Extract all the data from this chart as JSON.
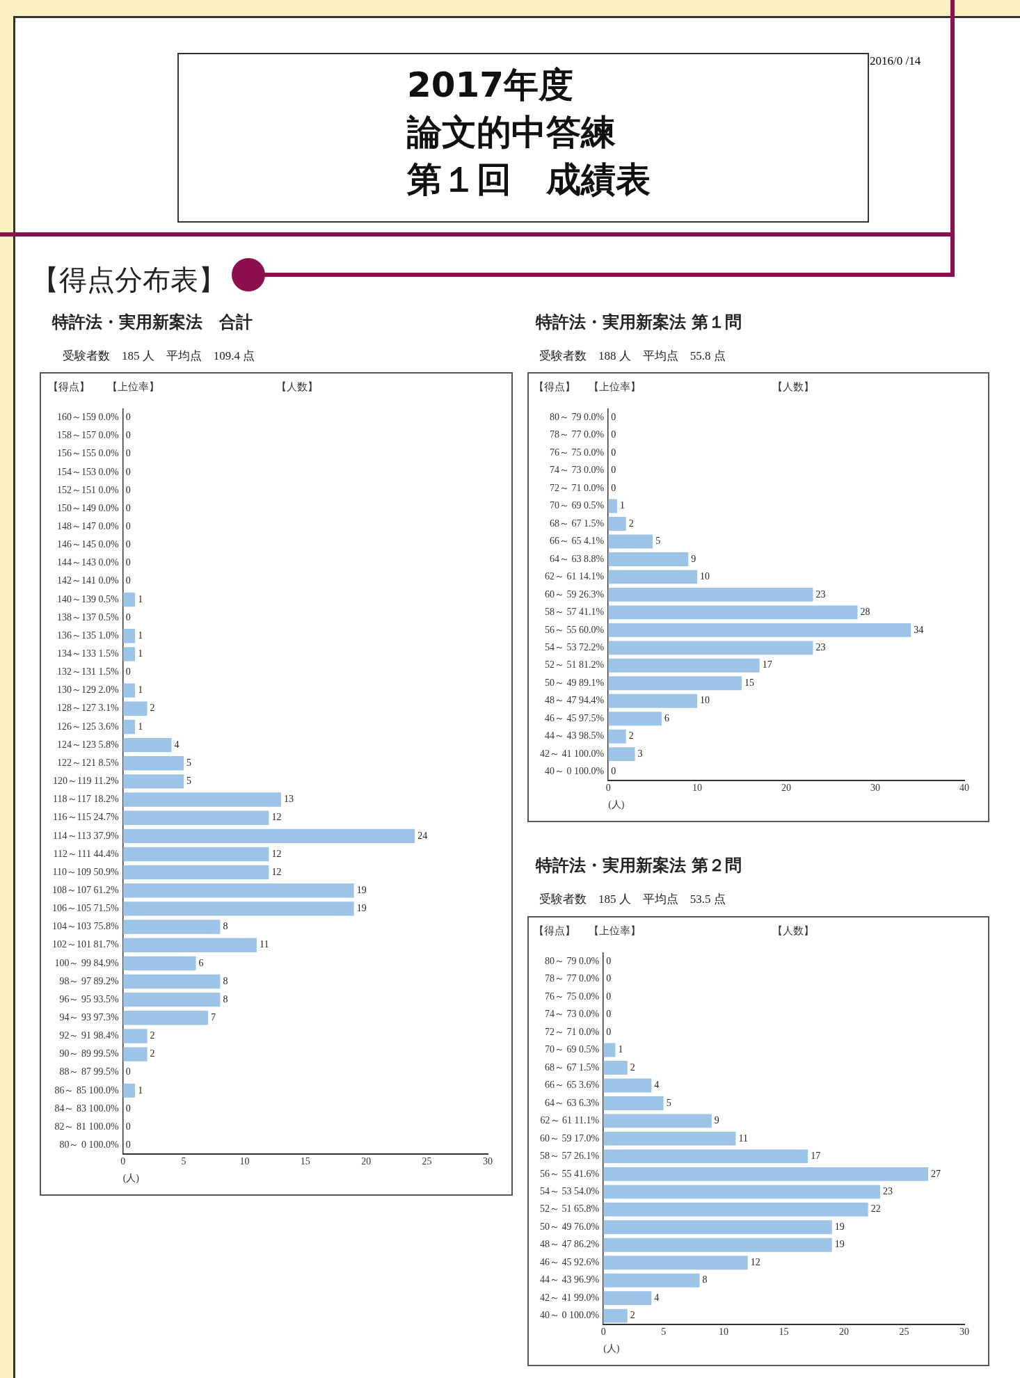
{
  "chart_data": [
    {
      "type": "other",
      "title": "2017年度",
      "subtitle": "論文的中答練",
      "annotations": [
        "第１回　成績表",
        "2016/0 /14",
        "【得点分布表】"
      ]
    },
    {
      "type": "bar",
      "orientation": "horizontal",
      "title": "特許法・実用新案法　合計",
      "subtitle": "受験者数　185 人　平均点　109.4 点",
      "xlabel": "(人)",
      "annotations": [
        "【得点】",
        "【上位率】",
        "【人数】"
      ],
      "categories": [
        "160～159 0.0%",
        "158～157 0.0%",
        "156～155 0.0%",
        "154～153 0.0%",
        "152～151 0.0%",
        "150～149 0.0%",
        "148～147 0.0%",
        "146～145 0.0%",
        "144～143 0.0%",
        "142～141 0.0%",
        "140～139 0.5%",
        "138～137 0.5%",
        "136～135 1.0%",
        "134～133 1.5%",
        "132～131 1.5%",
        "130～129 2.0%",
        "128～127 3.1%",
        "126～125 3.6%",
        "124～123 5.8%",
        "122～121 8.5%",
        "120～119 11.2%",
        "118～117 18.2%",
        "116～115 24.7%",
        "114～113 37.9%",
        "112～111 44.4%",
        "110～109 50.9%",
        "108～107 61.2%",
        "106～105 71.5%",
        "104～103 75.8%",
        "102～101 81.7%",
        "100～ 99 84.9%",
        "98～ 97 89.2%",
        "96～ 95 93.5%",
        "94～ 93 97.3%",
        "92～ 91 98.4%",
        "90～ 89 99.5%",
        "88～ 87 99.5%",
        "86～ 85 100.0%",
        "84～ 83 100.0%",
        "82～ 81 100.0%",
        "80～ 0 100.0%"
      ],
      "values": [
        0,
        0,
        0,
        0,
        0,
        0,
        0,
        0,
        0,
        0,
        1,
        0,
        1,
        1,
        0,
        1,
        2,
        1,
        4,
        5,
        5,
        13,
        12,
        24,
        12,
        12,
        19,
        19,
        8,
        11,
        6,
        8,
        8,
        7,
        2,
        2,
        0,
        1,
        0,
        0,
        0
      ],
      "color": "#9dc3e6",
      "xlim": [
        0,
        30
      ],
      "xticks": [
        0,
        5,
        10,
        15,
        20,
        25,
        30
      ],
      "data_labels": true
    },
    {
      "type": "bar",
      "orientation": "horizontal",
      "title": "特許法・実用新案法 第１問",
      "subtitle": "受験者数　188 人　平均点　55.8 点",
      "xlabel": "(人)",
      "annotations": [
        "【得点】",
        "【上位率】",
        "【人数】"
      ],
      "categories": [
        "80～ 79 0.0%",
        "78～ 77 0.0%",
        "76～ 75 0.0%",
        "74～ 73 0.0%",
        "72～ 71 0.0%",
        "70～ 69 0.5%",
        "68～ 67 1.5%",
        "66～ 65 4.1%",
        "64～ 63 8.8%",
        "62～ 61 14.1%",
        "60～ 59 26.3%",
        "58～ 57 41.1%",
        "56～ 55 60.0%",
        "54～ 53 72.2%",
        "52～ 51 81.2%",
        "50～ 49 89.1%",
        "48～ 47 94.4%",
        "46～ 45 97.5%",
        "44～ 43 98.5%",
        "42～ 41 100.0%",
        "40～ 0 100.0%"
      ],
      "values": [
        0,
        0,
        0,
        0,
        0,
        1,
        2,
        5,
        9,
        10,
        23,
        28,
        34,
        23,
        17,
        15,
        10,
        6,
        2,
        3,
        0
      ],
      "color": "#9dc3e6",
      "xlim": [
        0,
        40
      ],
      "xticks": [
        0,
        10,
        20,
        30,
        40
      ],
      "data_labels": true
    },
    {
      "type": "bar",
      "orientation": "horizontal",
      "title": "特許法・実用新案法 第２問",
      "subtitle": "受験者数　185 人　平均点　53.5 点",
      "xlabel": "(人)",
      "annotations": [
        "【得点】",
        "【上位率】",
        "【人数】"
      ],
      "categories": [
        "80～ 79 0.0%",
        "78～ 77 0.0%",
        "76～ 75 0.0%",
        "74～ 73 0.0%",
        "72～ 71 0.0%",
        "70～ 69 0.5%",
        "68～ 67 1.5%",
        "66～ 65 3.6%",
        "64～ 63 6.3%",
        "62～ 61 11.1%",
        "60～ 59 17.0%",
        "58～ 57 26.1%",
        "56～ 55 41.6%",
        "54～ 53 54.0%",
        "52～ 51 65.8%",
        "50～ 49 76.0%",
        "48～ 47 86.2%",
        "46～ 45 92.6%",
        "44～ 43 96.9%",
        "42～ 41 99.0%",
        "40～ 0 100.0%"
      ],
      "values": [
        0,
        0,
        0,
        0,
        0,
        1,
        2,
        4,
        5,
        9,
        11,
        17,
        27,
        23,
        22,
        19,
        19,
        12,
        8,
        4,
        2
      ],
      "color": "#9dc3e6",
      "xlim": [
        0,
        30
      ],
      "xticks": [
        0,
        5,
        10,
        15,
        20,
        25,
        30
      ],
      "data_labels": true
    }
  ]
}
